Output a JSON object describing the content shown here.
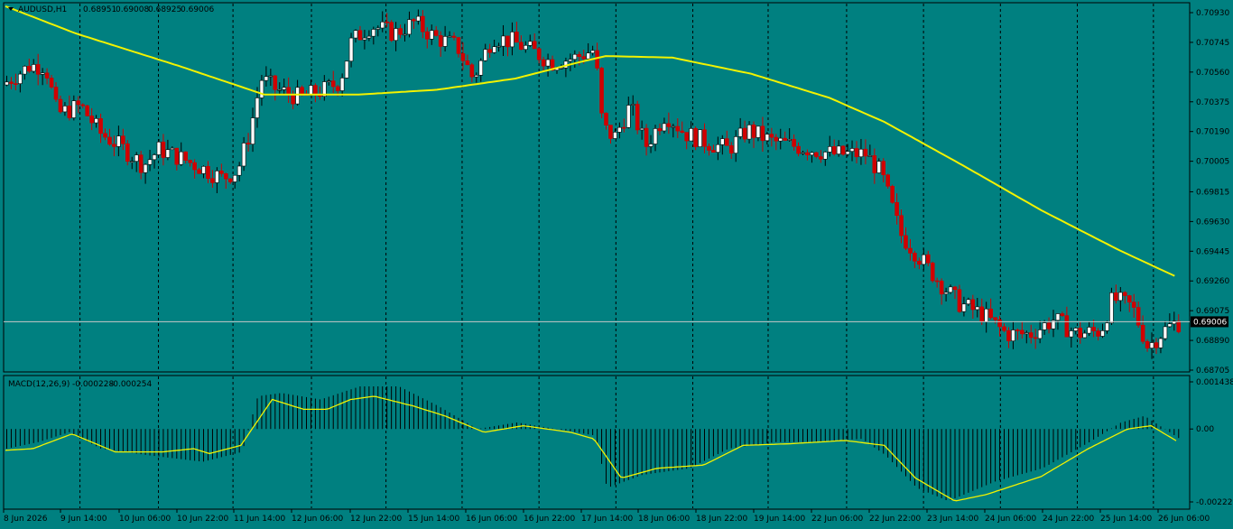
{
  "header": {
    "symbol": "AUDUSD,H1",
    "open": "0.68951",
    "high": "0.69008",
    "low": "0.68925",
    "close": "0.69006"
  },
  "indicator": {
    "name": "MACD(12,26,9)",
    "main": "-0.000228",
    "signal": "-0.000254"
  },
  "colors": {
    "background": "#008080",
    "bull_candle": "#ffffff",
    "bear_candle": "#d00000",
    "moving_average": "#f2f200",
    "signal_line": "#f2f200",
    "histogram": "#000000",
    "price_line": "#c8c8c8"
  },
  "chart_data": [
    {
      "type": "candlestick",
      "title": "AUDUSD,H1",
      "y_ticks": [
        "0.70930",
        "0.70745",
        "0.70560",
        "0.70375",
        "0.70190",
        "0.70005",
        "0.69815",
        "0.69630",
        "0.69445",
        "0.69260",
        "0.69075",
        "0.68890",
        "0.68705"
      ],
      "ylim": [
        0.68705,
        0.7093
      ],
      "current_price": "0.69006",
      "x_ticks": [
        "8 Jun 2026",
        "9 Jun 14:00",
        "10 Jun 06:00",
        "10 Jun 22:00",
        "11 Jun 14:00",
        "12 Jun 06:00",
        "12 Jun 22:00",
        "15 Jun 14:00",
        "16 Jun 06:00",
        "16 Jun 22:00",
        "17 Jun 14:00",
        "18 Jun 06:00",
        "18 Jun 22:00",
        "19 Jun 14:00",
        "22 Jun 06:00",
        "22 Jun 22:00",
        "23 Jun 14:00",
        "24 Jun 06:00",
        "24 Jun 22:00",
        "25 Jun 14:00",
        "26 Jun 06:00"
      ],
      "price_path": [
        {
          "x": 0,
          "y": 0.7048
        },
        {
          "x": 0.35,
          "y": 0.706
        },
        {
          "x": 0.55,
          "y": 0.706
        },
        {
          "x": 0.7,
          "y": 0.703
        },
        {
          "x": 1.0,
          "y": 0.7035
        },
        {
          "x": 1.25,
          "y": 0.7018
        },
        {
          "x": 1.5,
          "y": 0.701
        },
        {
          "x": 1.8,
          "y": 0.6998
        },
        {
          "x": 2.0,
          "y": 0.7008
        },
        {
          "x": 2.3,
          "y": 0.7002
        },
        {
          "x": 2.6,
          "y": 0.6995
        },
        {
          "x": 2.8,
          "y": 0.699
        },
        {
          "x": 3.0,
          "y": 0.6995
        },
        {
          "x": 3.15,
          "y": 0.7018
        },
        {
          "x": 3.3,
          "y": 0.7052
        },
        {
          "x": 3.5,
          "y": 0.7045
        },
        {
          "x": 3.8,
          "y": 0.704
        },
        {
          "x": 4.1,
          "y": 0.7045
        },
        {
          "x": 4.3,
          "y": 0.705
        },
        {
          "x": 4.45,
          "y": 0.7075
        },
        {
          "x": 4.7,
          "y": 0.7085
        },
        {
          "x": 5.0,
          "y": 0.708
        },
        {
          "x": 5.25,
          "y": 0.7087
        },
        {
          "x": 5.5,
          "y": 0.7078
        },
        {
          "x": 5.8,
          "y": 0.7072
        },
        {
          "x": 6.0,
          "y": 0.7052
        },
        {
          "x": 6.25,
          "y": 0.7078
        },
        {
          "x": 6.5,
          "y": 0.7075
        },
        {
          "x": 6.8,
          "y": 0.7068
        },
        {
          "x": 7.0,
          "y": 0.7062
        },
        {
          "x": 7.3,
          "y": 0.7065
        },
        {
          "x": 7.55,
          "y": 0.707
        },
        {
          "x": 7.65,
          "y": 0.7022
        },
        {
          "x": 7.8,
          "y": 0.7015
        },
        {
          "x": 8.0,
          "y": 0.7035
        },
        {
          "x": 8.2,
          "y": 0.701
        },
        {
          "x": 8.45,
          "y": 0.703
        },
        {
          "x": 8.7,
          "y": 0.7018
        },
        {
          "x": 9.0,
          "y": 0.7012
        },
        {
          "x": 9.25,
          "y": 0.7008
        },
        {
          "x": 9.5,
          "y": 0.702
        },
        {
          "x": 9.8,
          "y": 0.7013
        },
        {
          "x": 10.1,
          "y": 0.701
        },
        {
          "x": 10.3,
          "y": 0.7008
        },
        {
          "x": 10.6,
          "y": 0.7005
        },
        {
          "x": 11.0,
          "y": 0.7005
        },
        {
          "x": 11.2,
          "y": 0.6993
        },
        {
          "x": 11.45,
          "y": 0.6955
        },
        {
          "x": 11.7,
          "y": 0.694
        },
        {
          "x": 12.0,
          "y": 0.6922
        },
        {
          "x": 12.2,
          "y": 0.6912
        },
        {
          "x": 12.5,
          "y": 0.6905
        },
        {
          "x": 12.8,
          "y": 0.6893
        },
        {
          "x": 13.1,
          "y": 0.6893
        },
        {
          "x": 13.4,
          "y": 0.6902
        },
        {
          "x": 13.7,
          "y": 0.6893
        },
        {
          "x": 14.0,
          "y": 0.6895
        },
        {
          "x": 14.15,
          "y": 0.6915
        },
        {
          "x": 14.4,
          "y": 0.691
        },
        {
          "x": 14.6,
          "y": 0.6885
        },
        {
          "x": 14.8,
          "y": 0.6895
        },
        {
          "x": 14.95,
          "y": 0.69
        }
      ],
      "moving_average": [
        {
          "x": 0,
          "y": 0.7097
        },
        {
          "x": 0.9,
          "y": 0.708
        },
        {
          "x": 2.2,
          "y": 0.706
        },
        {
          "x": 3.3,
          "y": 0.7042
        },
        {
          "x": 4.5,
          "y": 0.7042
        },
        {
          "x": 5.5,
          "y": 0.7045
        },
        {
          "x": 6.5,
          "y": 0.7052
        },
        {
          "x": 7.3,
          "y": 0.7062
        },
        {
          "x": 7.65,
          "y": 0.7066
        },
        {
          "x": 8.5,
          "y": 0.7065
        },
        {
          "x": 9.5,
          "y": 0.7055
        },
        {
          "x": 10.5,
          "y": 0.704
        },
        {
          "x": 11.2,
          "y": 0.7025
        },
        {
          "x": 12.2,
          "y": 0.6998
        },
        {
          "x": 13.2,
          "y": 0.697
        },
        {
          "x": 14.2,
          "y": 0.6945
        },
        {
          "x": 14.95,
          "y": 0.6928
        }
      ]
    },
    {
      "type": "bar",
      "title": "MACD(12,26,9)",
      "y_ticks": [
        "0.001438",
        "0.00",
        "-0.002225"
      ],
      "ylim": [
        -0.002225,
        0.001438
      ],
      "macd_path": [
        {
          "x": 0,
          "y": -0.0006
        },
        {
          "x": 0.4,
          "y": -0.0004
        },
        {
          "x": 0.8,
          "y": -0.0001
        },
        {
          "x": 1.2,
          "y": -0.0006
        },
        {
          "x": 1.8,
          "y": -0.0008
        },
        {
          "x": 2.5,
          "y": -0.001
        },
        {
          "x": 3.0,
          "y": -0.0007
        },
        {
          "x": 3.2,
          "y": 0.001
        },
        {
          "x": 3.5,
          "y": 0.0011
        },
        {
          "x": 4.0,
          "y": 0.0009
        },
        {
          "x": 4.5,
          "y": 0.0013
        },
        {
          "x": 5.0,
          "y": 0.0013
        },
        {
          "x": 5.5,
          "y": 0.0007
        },
        {
          "x": 6.0,
          "y": 0.0
        },
        {
          "x": 6.5,
          "y": 0.0002
        },
        {
          "x": 7.0,
          "y": 0.0
        },
        {
          "x": 7.5,
          "y": -0.0002
        },
        {
          "x": 7.65,
          "y": -0.0018
        },
        {
          "x": 8.1,
          "y": -0.0014
        },
        {
          "x": 8.7,
          "y": -0.0012
        },
        {
          "x": 9.2,
          "y": -0.0006
        },
        {
          "x": 9.8,
          "y": -0.0004
        },
        {
          "x": 10.3,
          "y": -0.0004
        },
        {
          "x": 10.9,
          "y": -0.0003
        },
        {
          "x": 11.2,
          "y": -0.0008
        },
        {
          "x": 11.6,
          "y": -0.0018
        },
        {
          "x": 12.0,
          "y": -0.0022
        },
        {
          "x": 12.6,
          "y": -0.0016
        },
        {
          "x": 13.2,
          "y": -0.0012
        },
        {
          "x": 13.8,
          "y": -0.0004
        },
        {
          "x": 14.2,
          "y": 0.0002
        },
        {
          "x": 14.5,
          "y": 0.0004
        },
        {
          "x": 14.95,
          "y": -0.0003
        }
      ],
      "signal_line": [
        {
          "x": 0,
          "y": -0.00065
        },
        {
          "x": 0.35,
          "y": -0.0006
        },
        {
          "x": 0.85,
          "y": -0.00015
        },
        {
          "x": 1.4,
          "y": -0.0007
        },
        {
          "x": 2.0,
          "y": -0.0007
        },
        {
          "x": 2.4,
          "y": -0.0006
        },
        {
          "x": 2.6,
          "y": -0.00075
        },
        {
          "x": 3.0,
          "y": -0.0005
        },
        {
          "x": 3.4,
          "y": 0.0009
        },
        {
          "x": 3.8,
          "y": 0.0006
        },
        {
          "x": 4.1,
          "y": 0.0006
        },
        {
          "x": 4.4,
          "y": 0.0009
        },
        {
          "x": 4.7,
          "y": 0.001
        },
        {
          "x": 5.2,
          "y": 0.0007
        },
        {
          "x": 5.6,
          "y": 0.0004
        },
        {
          "x": 6.1,
          "y": -0.0001
        },
        {
          "x": 6.6,
          "y": 0.0001
        },
        {
          "x": 7.2,
          "y": -0.0001
        },
        {
          "x": 7.5,
          "y": -0.0003
        },
        {
          "x": 7.85,
          "y": -0.0015
        },
        {
          "x": 8.3,
          "y": -0.0012
        },
        {
          "x": 8.9,
          "y": -0.0011
        },
        {
          "x": 9.4,
          "y": -0.0005
        },
        {
          "x": 10.0,
          "y": -0.00045
        },
        {
          "x": 10.7,
          "y": -0.00035
        },
        {
          "x": 11.2,
          "y": -0.0005
        },
        {
          "x": 11.6,
          "y": -0.0015
        },
        {
          "x": 12.1,
          "y": -0.0022
        },
        {
          "x": 12.5,
          "y": -0.002
        },
        {
          "x": 13.2,
          "y": -0.00145
        },
        {
          "x": 13.8,
          "y": -0.0006
        },
        {
          "x": 14.3,
          "y": 0.0
        },
        {
          "x": 14.6,
          "y": 0.0001
        },
        {
          "x": 14.95,
          "y": -0.0004
        }
      ]
    }
  ]
}
